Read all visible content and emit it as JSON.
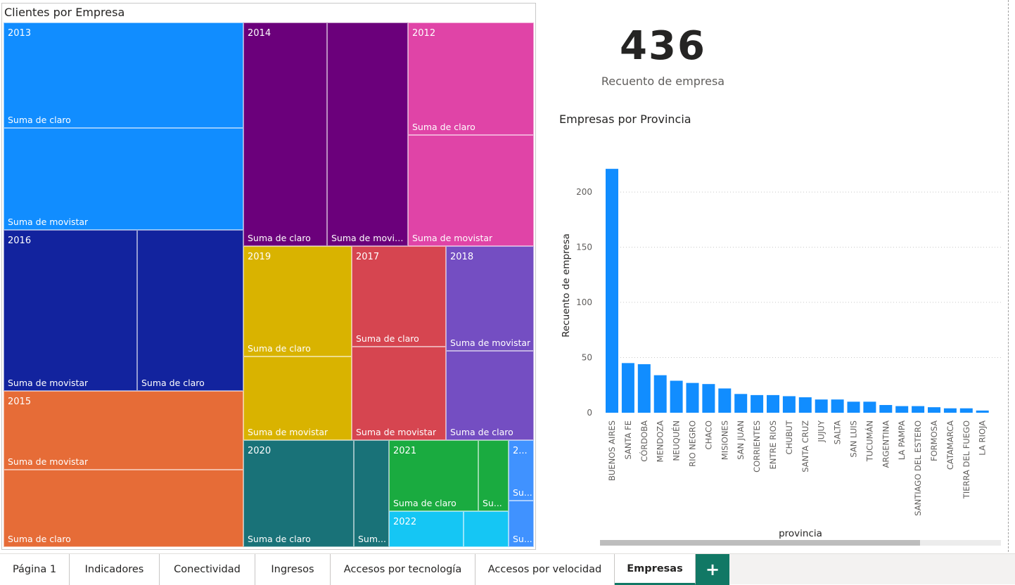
{
  "treemap": {
    "title": "Clientes por Empresa",
    "groups": [
      {
        "year": "2013",
        "color": "#118dff",
        "measures": [
          "Suma de claro",
          "Suma de movistar"
        ]
      },
      {
        "year": "2014",
        "color": "#6b007b",
        "measures": [
          "Suma de claro",
          "Suma de movis..."
        ]
      },
      {
        "year": "2012",
        "color": "#e044a7",
        "measures": [
          "Suma de claro",
          "Suma de movistar"
        ]
      },
      {
        "year": "2016",
        "color": "#12239e",
        "measures": [
          "Suma de movistar",
          "Suma de claro"
        ]
      },
      {
        "year": "2019",
        "color": "#d9b300",
        "measures": [
          "Suma de claro",
          "Suma de movistar"
        ]
      },
      {
        "year": "2017",
        "color": "#d64550",
        "measures": [
          "Suma de claro",
          "Suma de movistar"
        ]
      },
      {
        "year": "2018",
        "color": "#744ec2",
        "measures": [
          "Suma de movistar",
          "Suma de claro"
        ]
      },
      {
        "year": "2015",
        "color": "#e66c37",
        "measures": [
          "Suma de movistar",
          "Suma de claro"
        ]
      },
      {
        "year": "2020",
        "color": "#197278",
        "measures": [
          "Suma de claro",
          "Sum..."
        ]
      },
      {
        "year": "2021",
        "color": "#1aab40",
        "measures": [
          "Suma de claro",
          "Su..."
        ]
      },
      {
        "year": "2022",
        "color": "#15c6f4",
        "measures": [
          "",
          ""
        ]
      },
      {
        "year": "2...",
        "color": "#4092ff",
        "measures": [
          "Su...",
          "Su..."
        ]
      }
    ]
  },
  "card": {
    "value": "436",
    "label": "Recuento de empresa"
  },
  "bar_title": "Empresas por Provincia",
  "chart_data": {
    "type": "bar",
    "title": "Empresas por Provincia",
    "xlabel": "provincia",
    "ylabel": "Recuento de empresa",
    "ylim": [
      0,
      230
    ],
    "yticks": [
      0,
      50,
      100,
      150,
      200
    ],
    "grid": true,
    "color": "#118dff",
    "categories": [
      "BUENOS AIRES",
      "SANTA FE",
      "CÓRDOBA",
      "MENDOZA",
      "NEUQUÉN",
      "RIO NEGRO",
      "CHACO",
      "MISIONES",
      "SAN JUAN",
      "CORRIENTES",
      "ENTRE RIOS",
      "CHUBUT",
      "SANTA CRUZ",
      "JUJUY",
      "SALTA",
      "SAN LUIS",
      "TUCUMÁN",
      "ARGENTINA",
      "LA PAMPA",
      "SANTIAGO DEL ESTERO",
      "FORMOSA",
      "CATAMARCA",
      "TIERRA DEL FUEGO",
      "LA RIOJA"
    ],
    "values": [
      221,
      45,
      44,
      34,
      29,
      27,
      26,
      22,
      17,
      16,
      16,
      15,
      14,
      12,
      12,
      10,
      10,
      7,
      6,
      6,
      5,
      4,
      4,
      2
    ]
  },
  "tabs": [
    {
      "label": "Página 1"
    },
    {
      "label": "Indicadores"
    },
    {
      "label": "Conectividad"
    },
    {
      "label": "Ingresos"
    },
    {
      "label": "Accesos por tecnología"
    },
    {
      "label": "Accesos por velocidad"
    },
    {
      "label": "Empresas",
      "active": true
    }
  ],
  "add_page_label": "+"
}
